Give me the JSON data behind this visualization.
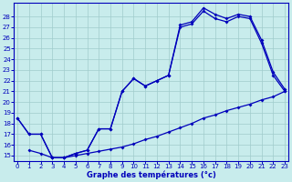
{
  "xlabel": "Graphe des températures (°c)",
  "bg_color": "#c8ecec",
  "line_color": "#0000bb",
  "grid_color": "#a0cccc",
  "xlim": [
    -0.3,
    23.3
  ],
  "ylim": [
    14.5,
    29.3
  ],
  "xticks": [
    0,
    1,
    2,
    3,
    4,
    5,
    6,
    7,
    8,
    9,
    10,
    11,
    12,
    13,
    14,
    15,
    16,
    17,
    18,
    19,
    20,
    21,
    22,
    23
  ],
  "yticks": [
    15,
    16,
    17,
    18,
    19,
    20,
    21,
    22,
    23,
    24,
    25,
    26,
    27,
    28
  ],
  "curve1_x": [
    0,
    1,
    2,
    3,
    4,
    5,
    6,
    7,
    8,
    9,
    10,
    11,
    12,
    13,
    14,
    15,
    16,
    17,
    18,
    19,
    20,
    21,
    22,
    23
  ],
  "curve1_y": [
    18.5,
    17.0,
    17.0,
    14.8,
    14.8,
    15.2,
    15.5,
    17.5,
    17.5,
    21.0,
    22.2,
    21.5,
    22.0,
    22.5,
    27.2,
    27.5,
    28.8,
    28.2,
    27.8,
    28.2,
    28.0,
    25.8,
    22.8,
    21.2
  ],
  "curve2_x": [
    0,
    1,
    2,
    3,
    4,
    5,
    6,
    7,
    8,
    9,
    10,
    11,
    12,
    13,
    14,
    15,
    16,
    17,
    18,
    19,
    20,
    21,
    22,
    23
  ],
  "curve2_y": [
    18.5,
    17.0,
    17.0,
    14.8,
    14.8,
    15.2,
    15.5,
    17.5,
    17.5,
    21.0,
    22.2,
    21.5,
    22.0,
    22.5,
    27.0,
    27.3,
    28.5,
    27.8,
    27.5,
    28.0,
    27.8,
    25.5,
    22.5,
    21.0
  ],
  "curve3_x": [
    1,
    2,
    3,
    4,
    5,
    6,
    7,
    8,
    9,
    10,
    11,
    12,
    13,
    14,
    15,
    16,
    17,
    18,
    19,
    20,
    21,
    22,
    23
  ],
  "curve3_y": [
    15.5,
    15.2,
    14.8,
    14.8,
    15.0,
    15.2,
    15.4,
    15.6,
    15.8,
    16.1,
    16.5,
    16.8,
    17.2,
    17.6,
    18.0,
    18.5,
    18.8,
    19.2,
    19.5,
    19.8,
    20.2,
    20.5,
    21.0
  ],
  "tick_labelsize": 5,
  "xlabel_fontsize": 6,
  "linewidth": 0.9,
  "markersize": 2
}
